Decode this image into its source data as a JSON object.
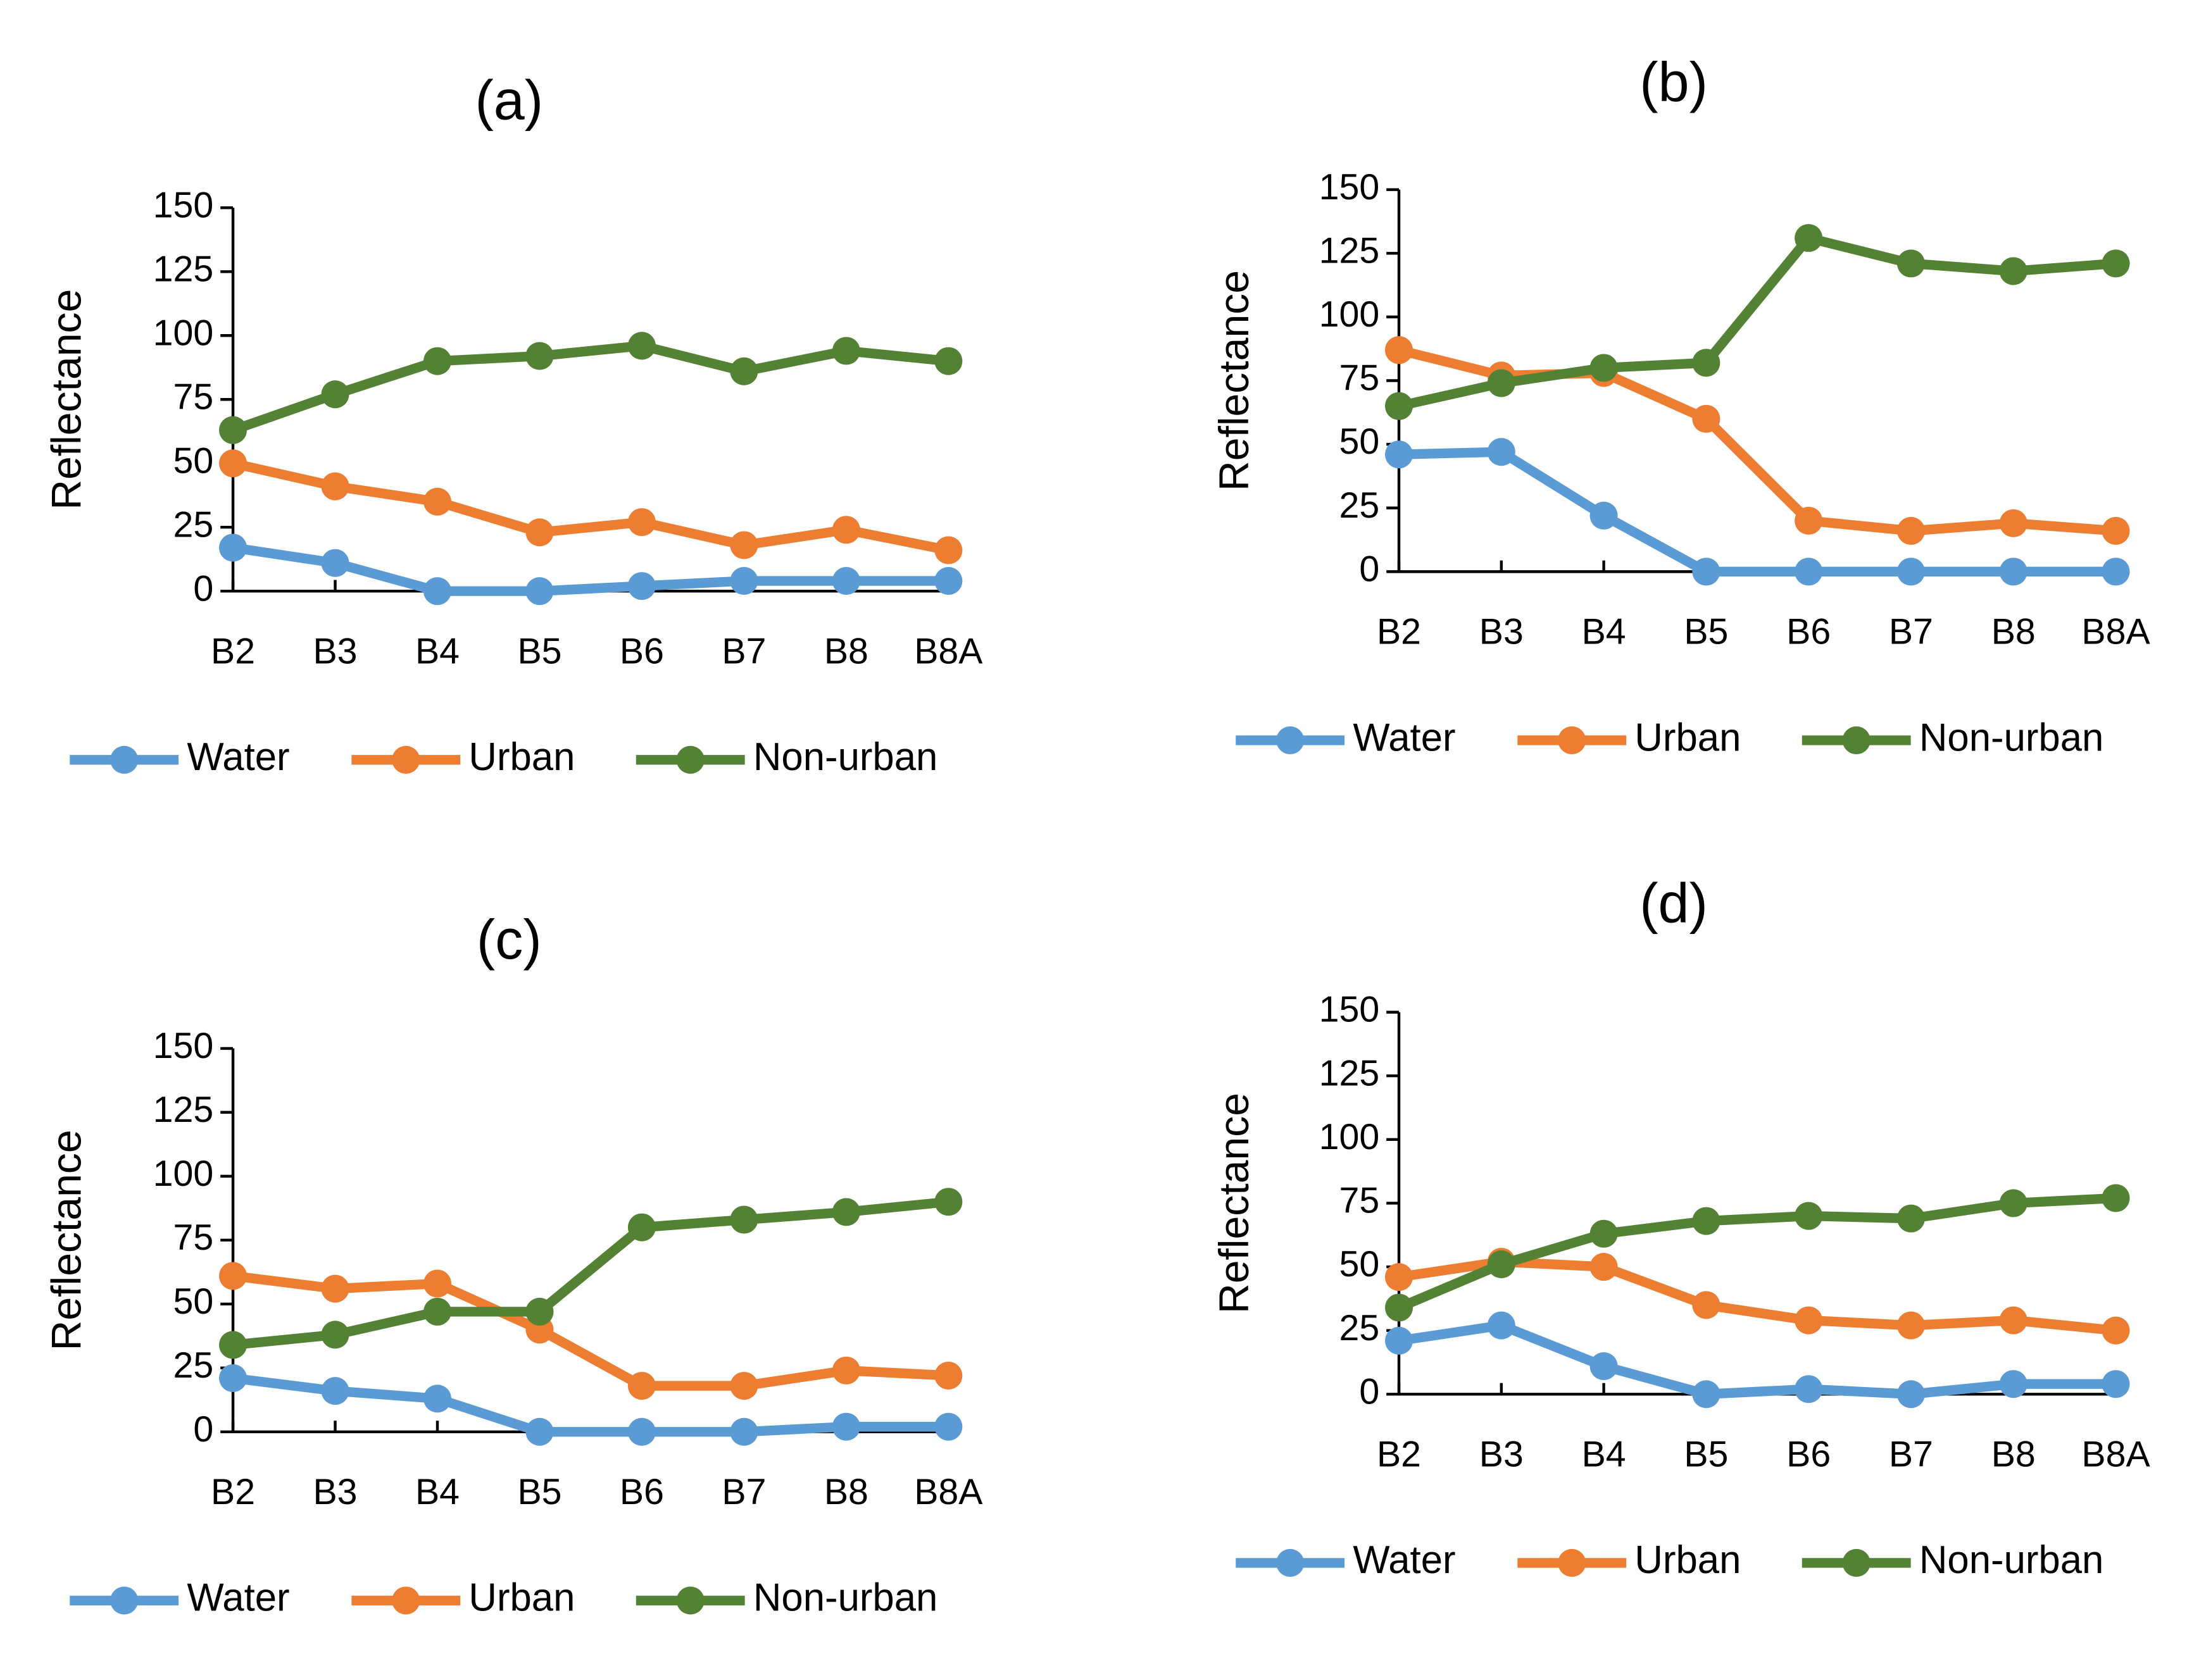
{
  "chart_data": [
    {
      "type": "line",
      "title": "(a)",
      "ylabel": "Reflectance",
      "categories": [
        "B2",
        "B3",
        "B4",
        "B5",
        "B6",
        "B7",
        "B8",
        "B8A"
      ],
      "ylim": [
        0,
        150
      ],
      "yticks": [
        0,
        25,
        50,
        75,
        100,
        125,
        150
      ],
      "grid": false,
      "legend": "bottom",
      "series": [
        {
          "name": "Water",
          "color": "#5b9bd5",
          "values": [
            17,
            11,
            0,
            0,
            2,
            4,
            4,
            4
          ]
        },
        {
          "name": "Urban",
          "color": "#ed7d31",
          "values": [
            50,
            41,
            35,
            23,
            27,
            18,
            24,
            16
          ]
        },
        {
          "name": "Non-urban",
          "color": "#548235",
          "values": [
            63,
            77,
            90,
            92,
            96,
            86,
            94,
            90
          ]
        }
      ]
    },
    {
      "type": "line",
      "title": "(b)",
      "ylabel": "Reflectance",
      "categories": [
        "B2",
        "B3",
        "B4",
        "B5",
        "B6",
        "B7",
        "B8",
        "B8A"
      ],
      "ylim": [
        0,
        150
      ],
      "yticks": [
        0,
        25,
        50,
        75,
        100,
        125,
        150
      ],
      "grid": false,
      "legend": "bottom",
      "series": [
        {
          "name": "Water",
          "color": "#5b9bd5",
          "values": [
            46,
            47,
            22,
            0,
            0,
            0,
            0,
            0
          ]
        },
        {
          "name": "Urban",
          "color": "#ed7d31",
          "values": [
            87,
            77,
            78,
            60,
            20,
            16,
            19,
            16
          ]
        },
        {
          "name": "Non-urban",
          "color": "#548235",
          "values": [
            65,
            74,
            80,
            82,
            131,
            121,
            118,
            121
          ]
        }
      ]
    },
    {
      "type": "line",
      "title": "(c)",
      "ylabel": "Reflectance",
      "categories": [
        "B2",
        "B3",
        "B4",
        "B5",
        "B6",
        "B7",
        "B8",
        "B8A"
      ],
      "ylim": [
        0,
        150
      ],
      "yticks": [
        0,
        25,
        50,
        75,
        100,
        125,
        150
      ],
      "grid": false,
      "legend": "bottom",
      "series": [
        {
          "name": "Water",
          "color": "#5b9bd5",
          "values": [
            21,
            16,
            13,
            0,
            0,
            0,
            2,
            2
          ]
        },
        {
          "name": "Urban",
          "color": "#ed7d31",
          "values": [
            61,
            56,
            58,
            40,
            18,
            18,
            24,
            22
          ]
        },
        {
          "name": "Non-urban",
          "color": "#548235",
          "values": [
            34,
            38,
            47,
            47,
            80,
            83,
            86,
            90
          ]
        }
      ]
    },
    {
      "type": "line",
      "title": "(d)",
      "ylabel": "Reflectance",
      "categories": [
        "B2",
        "B3",
        "B4",
        "B5",
        "B6",
        "B7",
        "B8",
        "B8A"
      ],
      "ylim": [
        0,
        150
      ],
      "yticks": [
        0,
        25,
        50,
        75,
        100,
        125,
        150
      ],
      "grid": false,
      "legend": "bottom",
      "series": [
        {
          "name": "Water",
          "color": "#5b9bd5",
          "values": [
            21,
            27,
            11,
            0,
            2,
            0,
            4,
            4
          ]
        },
        {
          "name": "Urban",
          "color": "#ed7d31",
          "values": [
            46,
            52,
            50,
            35,
            29,
            27,
            29,
            25
          ]
        },
        {
          "name": "Non-urban",
          "color": "#548235",
          "values": [
            34,
            51,
            63,
            68,
            70,
            69,
            75,
            77
          ]
        }
      ]
    }
  ]
}
